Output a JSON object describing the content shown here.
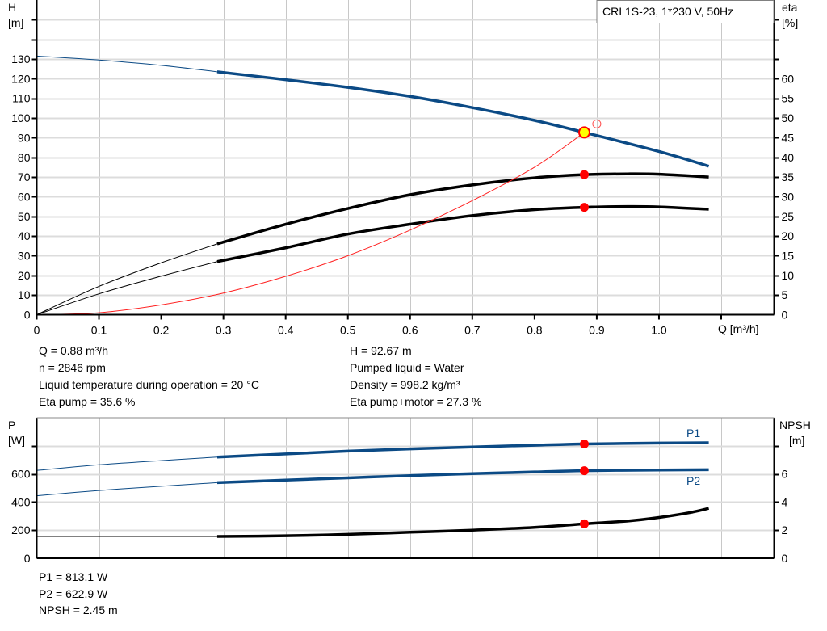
{
  "chart_data": [
    {
      "type": "line",
      "title": "CRI 1S-23, 1*230 V, 50Hz",
      "xlabel": "Q [m³/h]",
      "ylabel": [
        "H",
        "[m]"
      ],
      "y2label": [
        "eta",
        "[%]"
      ],
      "xlim": [
        0,
        1.185
      ],
      "ylim": [
        0,
        160
      ],
      "y2lim": [
        0,
        80
      ],
      "grid": true,
      "x_ticks": [
        "0",
        "0.1",
        "0.2",
        "0.3",
        "0.4",
        "0.5",
        "0.6",
        "0.7",
        "0.8",
        "0.9",
        "1.0"
      ],
      "y_ticks": [
        "0",
        "10",
        "20",
        "30",
        "40",
        "50",
        "60",
        "70",
        "80",
        "90",
        "100",
        "110",
        "120",
        "130"
      ],
      "y2_ticks": [
        "0",
        "5",
        "10",
        "15",
        "20",
        "25",
        "30",
        "35",
        "40",
        "45",
        "50",
        "55",
        "60"
      ],
      "colors": {
        "head": "#0b4a85",
        "eta": "#000000",
        "system": "#ff2020",
        "point": "#ff0000",
        "duty": "#ffff00"
      },
      "series": [
        {
          "id": "head",
          "axis": "left",
          "color": "#0b4a85",
          "thick_from": 0.29,
          "x": [
            0,
            0.1,
            0.2,
            0.29,
            0.4,
            0.5,
            0.6,
            0.7,
            0.8,
            0.88,
            1.0,
            1.08
          ],
          "y": [
            131.5,
            129.5,
            126.8,
            123.5,
            119.5,
            115.6,
            111,
            105.3,
            98.8,
            92.67,
            83,
            75.5
          ]
        },
        {
          "id": "eta-pump",
          "axis": "right",
          "color": "#000000",
          "thick_from": 0.29,
          "x": [
            0,
            0.1,
            0.2,
            0.29,
            0.4,
            0.5,
            0.6,
            0.7,
            0.8,
            0.88,
            0.95,
            1.0,
            1.08
          ],
          "y": [
            0,
            7.2,
            13.2,
            18,
            23,
            27,
            30.5,
            33,
            34.8,
            35.6,
            35.8,
            35.7,
            35
          ]
        },
        {
          "id": "eta-pump-motor",
          "axis": "right",
          "color": "#000000",
          "thick_from": 0.29,
          "x": [
            0,
            0.1,
            0.2,
            0.29,
            0.4,
            0.5,
            0.6,
            0.7,
            0.8,
            0.88,
            0.95,
            1.0,
            1.08
          ],
          "y": [
            0,
            5.3,
            9.8,
            13.5,
            17,
            20.5,
            23,
            25.2,
            26.7,
            27.3,
            27.5,
            27.4,
            26.8
          ]
        },
        {
          "id": "system",
          "axis": "left",
          "color": "#ff2020",
          "thick_from": null,
          "x": [
            0,
            0.1,
            0.2,
            0.3,
            0.4,
            0.5,
            0.6,
            0.7,
            0.8,
            0.88
          ],
          "y": [
            0,
            1,
            5,
            11,
            19.5,
            30,
            43,
            58,
            75,
            92.67
          ]
        }
      ],
      "points": [
        {
          "x": 0.88,
          "y": 92.67,
          "axis": "left",
          "style": "duty"
        },
        {
          "x": 0.88,
          "y": 35.6,
          "axis": "right",
          "style": "filled"
        },
        {
          "x": 0.88,
          "y": 27.3,
          "axis": "right",
          "style": "filled"
        },
        {
          "x": 0.9,
          "y": 97,
          "axis": "left",
          "style": "hollow"
        }
      ]
    },
    {
      "type": "line",
      "ylabel": [
        "P",
        "[W]"
      ],
      "y2label": [
        "NPSH",
        "[m]"
      ],
      "xlim": [
        0,
        1.185
      ],
      "ylim": [
        0,
        1000
      ],
      "y2lim": [
        0,
        10
      ],
      "grid": true,
      "y_ticks": [
        "0",
        "200",
        "400",
        "600"
      ],
      "y2_ticks": [
        "0",
        "2",
        "4",
        "6"
      ],
      "series": [
        {
          "id": "P1",
          "name": "P1",
          "axis": "left",
          "color": "#0b4a85",
          "thick_from": 0.29,
          "x": [
            0,
            0.1,
            0.2,
            0.29,
            0.4,
            0.5,
            0.6,
            0.7,
            0.8,
            0.88,
            1.0,
            1.08
          ],
          "y": [
            625,
            665,
            695,
            720,
            742,
            762,
            778,
            792,
            804,
            813.1,
            820,
            822
          ]
        },
        {
          "id": "P2",
          "name": "P2",
          "axis": "left",
          "color": "#0b4a85",
          "thick_from": 0.29,
          "x": [
            0,
            0.1,
            0.2,
            0.29,
            0.4,
            0.5,
            0.6,
            0.7,
            0.8,
            0.88,
            1.0,
            1.08
          ],
          "y": [
            445,
            482,
            512,
            538,
            556,
            572,
            588,
            602,
            614,
            622.9,
            628,
            630
          ]
        },
        {
          "id": "NPSH",
          "axis": "right",
          "color": "#000000",
          "thick_from": 0.29,
          "x": [
            0,
            0.29,
            0.4,
            0.5,
            0.6,
            0.7,
            0.8,
            0.88,
            0.95,
            1.0,
            1.05,
            1.08
          ],
          "y": [
            1.55,
            1.55,
            1.6,
            1.7,
            1.85,
            2.0,
            2.2,
            2.45,
            2.65,
            2.9,
            3.25,
            3.55
          ]
        }
      ],
      "points": [
        {
          "x": 0.88,
          "y": 813.1,
          "axis": "left",
          "style": "filled"
        },
        {
          "x": 0.88,
          "y": 622.9,
          "axis": "left",
          "style": "filled"
        },
        {
          "x": 0.88,
          "y": 2.45,
          "axis": "right",
          "style": "filled"
        }
      ]
    }
  ],
  "info_top_left": [
    "Q = 0.88 m³/h",
    "n = 2846 rpm",
    "Liquid temperature during operation = 20 °C",
    "Eta pump = 35.6 %"
  ],
  "info_top_right": [
    "H = 92.67 m",
    "Pumped liquid = Water",
    "Density = 998.2 kg/m³",
    "Eta pump+motor = 27.3 %"
  ],
  "info_bottom": [
    "P1 = 813.1 W",
    "P2 = 622.9 W",
    "NPSH = 2.45 m"
  ]
}
